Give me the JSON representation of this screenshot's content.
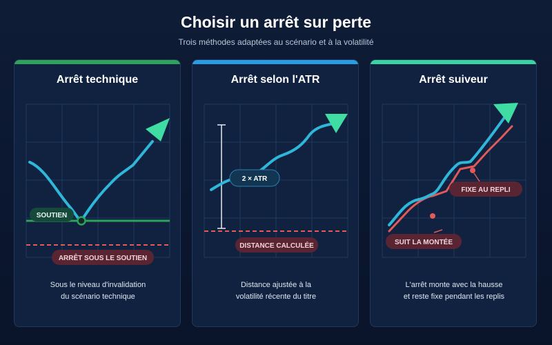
{
  "header": {
    "title": "Choisir un arrêt sur perte",
    "subtitle": "Trois méthodes adaptées au scénario et à la volatilité"
  },
  "colors": {
    "green": "#2fa35a",
    "blue": "#2a9de2",
    "teal": "#39d4a2",
    "price_line": "#2fb6d8",
    "stop_red": "#e25a5a",
    "arrow_head": "#3fdca4"
  },
  "cards": [
    {
      "title": "Arrêt technique",
      "labels": {
        "support": "SOUTIEN",
        "stop": "ARRÊT SOUS LE SOUTIEN"
      },
      "description": [
        "Sous le niveau d'invalidation",
        "du scénario technique"
      ]
    },
    {
      "title": "Arrêt selon l'ATR",
      "labels": {
        "atr": "2 × ATR",
        "stop": "DISTANCE CALCULÉE"
      },
      "description": [
        "Distance ajustée à la",
        "volatilité récente du titre"
      ]
    },
    {
      "title": "Arrêt suiveur",
      "labels": {
        "fixed": "FIXE AU REPLI",
        "rising": "SUIT LA MONTÉE"
      },
      "description": [
        "L'arrêt monte avec la hausse",
        "et reste fixe pendant les replis"
      ]
    }
  ]
}
